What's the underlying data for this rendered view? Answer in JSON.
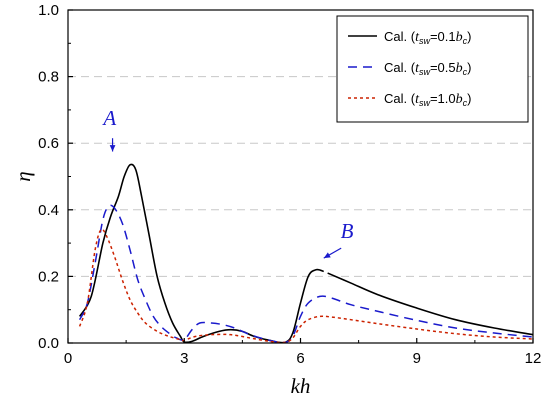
{
  "chart_data": {
    "type": "line",
    "title": "",
    "xlabel": "kh",
    "ylabel": "η",
    "xlim": [
      0,
      12
    ],
    "ylim": [
      0,
      1.0
    ],
    "xticks": [
      0,
      3,
      6,
      9,
      12
    ],
    "yticks": [
      0.0,
      0.2,
      0.4,
      0.6,
      0.8,
      1.0
    ],
    "xtick_labels": [
      "0",
      "3",
      "6",
      "9",
      "12"
    ],
    "ytick_labels": [
      "0.0",
      "0.2",
      "0.4",
      "0.6",
      "0.8",
      "1.0"
    ],
    "grid": "horizontal-dashed",
    "legend_position": "top-right",
    "series": [
      {
        "name": "Cal. (tsw=0.1bc)",
        "legend": {
          "prefix": "Cal. (",
          "var": "t",
          "var_sub": "sw",
          "mid": "=0.1",
          "var2": "b",
          "var2_sub": "c",
          "suffix": ")"
        },
        "color": "#000000",
        "dash": "solid",
        "segments": [
          [
            [
              0.3,
              0.08
            ],
            [
              0.6,
              0.14
            ],
            [
              0.9,
              0.3
            ],
            [
              1.1,
              0.38
            ],
            [
              1.3,
              0.44
            ],
            [
              1.45,
              0.5
            ],
            [
              1.6,
              0.535
            ],
            [
              1.75,
              0.52
            ],
            [
              1.9,
              0.44
            ],
            [
              2.1,
              0.32
            ],
            [
              2.3,
              0.2
            ],
            [
              2.5,
              0.12
            ],
            [
              2.7,
              0.06
            ],
            [
              2.9,
              0.02
            ],
            [
              3.0,
              0.003
            ],
            [
              3.2,
              0.005
            ],
            [
              3.5,
              0.02
            ],
            [
              3.9,
              0.035
            ],
            [
              4.2,
              0.04
            ],
            [
              4.5,
              0.035
            ],
            [
              4.8,
              0.02
            ],
            [
              5.2,
              0.008
            ],
            [
              5.6,
              0.002
            ],
            [
              5.8,
              0.03
            ],
            [
              6.0,
              0.12
            ],
            [
              6.2,
              0.2
            ],
            [
              6.4,
              0.22
            ],
            [
              6.6,
              0.215
            ]
          ],
          [
            [
              6.7,
              0.21
            ],
            [
              7.3,
              0.18
            ],
            [
              8.0,
              0.145
            ],
            [
              9.0,
              0.105
            ],
            [
              10.0,
              0.07
            ],
            [
              11.0,
              0.045
            ],
            [
              12.0,
              0.025
            ]
          ]
        ]
      },
      {
        "name": "Cal. (tsw=0.5bc)",
        "legend": {
          "prefix": "Cal. (",
          "var": "t",
          "var_sub": "sw",
          "mid": "=0.5",
          "var2": "b",
          "var2_sub": "c",
          "suffix": ")"
        },
        "color": "#1a1acc",
        "dash": "9,6",
        "segments": [
          [
            [
              0.3,
              0.07
            ],
            [
              0.5,
              0.12
            ],
            [
              0.7,
              0.24
            ],
            [
              0.9,
              0.37
            ],
            [
              1.05,
              0.41
            ],
            [
              1.2,
              0.405
            ],
            [
              1.4,
              0.36
            ],
            [
              1.6,
              0.28
            ],
            [
              1.8,
              0.19
            ],
            [
              2.0,
              0.13
            ],
            [
              2.2,
              0.08
            ],
            [
              2.4,
              0.05
            ],
            [
              2.6,
              0.03
            ],
            [
              2.8,
              0.015
            ],
            [
              3.0,
              0.01
            ],
            [
              3.2,
              0.04
            ],
            [
              3.4,
              0.06
            ],
            [
              3.7,
              0.06
            ],
            [
              4.0,
              0.055
            ],
            [
              4.3,
              0.045
            ],
            [
              4.7,
              0.025
            ],
            [
              5.2,
              0.008
            ],
            [
              5.6,
              0.002
            ],
            [
              5.8,
              0.02
            ],
            [
              6.0,
              0.08
            ],
            [
              6.2,
              0.12
            ],
            [
              6.5,
              0.14
            ],
            [
              6.8,
              0.135
            ],
            [
              7.3,
              0.115
            ],
            [
              8.0,
              0.095
            ],
            [
              9.0,
              0.068
            ],
            [
              10.0,
              0.045
            ],
            [
              11.0,
              0.03
            ],
            [
              12.0,
              0.018
            ]
          ]
        ]
      },
      {
        "name": "Cal. (tsw=1.0bc)",
        "legend": {
          "prefix": "Cal. (",
          "var": "t",
          "var_sub": "sw",
          "mid": "=1.0",
          "var2": "b",
          "var2_sub": "c",
          "suffix": ")"
        },
        "color": "#cc2200",
        "dash": "3,3",
        "segments": [
          [
            [
              0.3,
              0.05
            ],
            [
              0.5,
              0.12
            ],
            [
              0.7,
              0.28
            ],
            [
              0.85,
              0.34
            ],
            [
              1.0,
              0.32
            ],
            [
              1.2,
              0.26
            ],
            [
              1.4,
              0.19
            ],
            [
              1.6,
              0.13
            ],
            [
              1.8,
              0.09
            ],
            [
              2.0,
              0.06
            ],
            [
              2.3,
              0.035
            ],
            [
              2.6,
              0.02
            ],
            [
              2.9,
              0.01
            ],
            [
              3.0,
              0.008
            ],
            [
              3.3,
              0.02
            ],
            [
              3.7,
              0.025
            ],
            [
              4.2,
              0.025
            ],
            [
              4.7,
              0.015
            ],
            [
              5.2,
              0.005
            ],
            [
              5.6,
              0.002
            ],
            [
              5.8,
              0.015
            ],
            [
              6.0,
              0.05
            ],
            [
              6.2,
              0.07
            ],
            [
              6.5,
              0.08
            ],
            [
              6.8,
              0.078
            ],
            [
              7.3,
              0.07
            ],
            [
              8.0,
              0.058
            ],
            [
              9.0,
              0.042
            ],
            [
              10.0,
              0.028
            ],
            [
              11.0,
              0.018
            ],
            [
              12.0,
              0.012
            ]
          ]
        ]
      }
    ],
    "annotations": [
      {
        "text": "A",
        "x": 1.08,
        "y": 0.655,
        "color": "#1a1acc",
        "arrow_from": [
          1.15,
          0.615
        ],
        "arrow_to": [
          1.15,
          0.575
        ]
      },
      {
        "text": "B",
        "x": 7.2,
        "y": 0.315,
        "color": "#1a1acc",
        "arrow_from": [
          7.05,
          0.285
        ],
        "arrow_to": [
          6.6,
          0.255
        ]
      }
    ]
  }
}
